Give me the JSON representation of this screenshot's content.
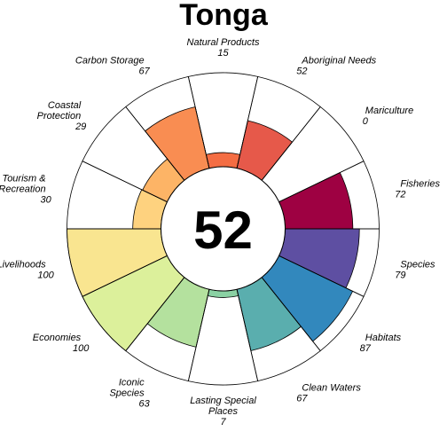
{
  "chart_data": {
    "type": "pie",
    "subtype": "flower",
    "title": "Tonga",
    "center_score": "52",
    "value_range": [
      0,
      100
    ],
    "petals": [
      {
        "name": "Natural Products",
        "label_lines": [
          "Natural Products"
        ],
        "value": 15,
        "color": "#f46d43"
      },
      {
        "name": "Aboriginal Needs",
        "label_lines": [
          "Aboriginal Needs"
        ],
        "value": 52,
        "color": "#e6594a"
      },
      {
        "name": "Mariculture",
        "label_lines": [
          "Mariculture"
        ],
        "value": 0,
        "color": "#d53e4f"
      },
      {
        "name": "Fisheries",
        "label_lines": [
          "Fisheries"
        ],
        "value": 72,
        "color": "#9e0142"
      },
      {
        "name": "Species",
        "label_lines": [
          "Species"
        ],
        "value": 79,
        "color": "#5e4fa2"
      },
      {
        "name": "Habitats",
        "label_lines": [
          "Habitats"
        ],
        "value": 87,
        "color": "#3288bd"
      },
      {
        "name": "Clean Waters",
        "label_lines": [
          "Clean Waters"
        ],
        "value": 67,
        "color": "#5aaeae"
      },
      {
        "name": "Lasting Special Places",
        "label_lines": [
          "Lasting Special",
          "Places"
        ],
        "value": 7,
        "color": "#8ad1a3"
      },
      {
        "name": "Iconic Species",
        "label_lines": [
          "Iconic",
          "Species"
        ],
        "value": 63,
        "color": "#b4e19e"
      },
      {
        "name": "Economies",
        "label_lines": [
          "Economies"
        ],
        "value": 100,
        "color": "#dcf09b"
      },
      {
        "name": "Livelihoods",
        "label_lines": [
          "Livelihoods"
        ],
        "value": 100,
        "color": "#f9e590"
      },
      {
        "name": "Tourism & Recreation",
        "label_lines": [
          "Tourism &",
          "Recreation"
        ],
        "value": 30,
        "color": "#fed27f"
      },
      {
        "name": "Coastal Protection",
        "label_lines": [
          "Coastal",
          "Protection"
        ],
        "value": 29,
        "color": "#fdb466"
      },
      {
        "name": "Carbon Storage",
        "label_lines": [
          "Carbon Storage"
        ],
        "value": 67,
        "color": "#f98d52"
      }
    ]
  }
}
